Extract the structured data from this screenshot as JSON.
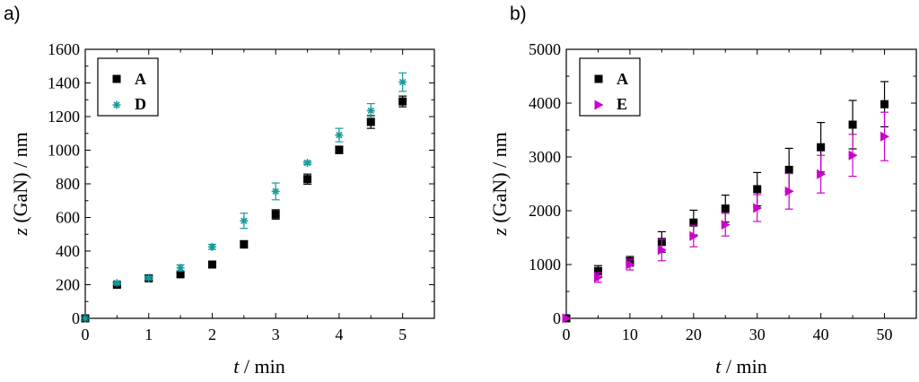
{
  "chart_data": [
    {
      "panel_label": "a)",
      "type": "scatter",
      "xlabel_var": "t",
      "xlabel_unit": " / min",
      "ylabel_var": "z",
      "ylabel_unit": " (GaN) / nm",
      "xlim": [
        0,
        5.5
      ],
      "ylim": [
        0,
        1600
      ],
      "xticks": [
        0,
        1,
        2,
        3,
        4,
        5
      ],
      "yticks": [
        0,
        200,
        400,
        600,
        800,
        1000,
        1200,
        1400,
        1600
      ],
      "legend_position": "top-left",
      "series": [
        {
          "name": "A",
          "marker": "square",
          "color": "#000000",
          "x": [
            0,
            0.5,
            1,
            1.5,
            2,
            2.5,
            3,
            3.5,
            4,
            4.5,
            5
          ],
          "y": [
            0,
            200,
            238,
            262,
            320,
            440,
            618,
            828,
            1002,
            1168,
            1290
          ],
          "err": [
            0,
            10,
            10,
            12,
            10,
            22,
            28,
            30,
            22,
            38,
            32
          ]
        },
        {
          "name": "D",
          "marker": "asterisk",
          "color": "#1a9a9a",
          "x": [
            0,
            0.5,
            1,
            1.5,
            2,
            2.5,
            3,
            3.5,
            4,
            4.5,
            5
          ],
          "y": [
            0,
            210,
            240,
            300,
            425,
            580,
            755,
            925,
            1090,
            1235,
            1405
          ],
          "err": [
            0,
            8,
            8,
            18,
            15,
            45,
            50,
            10,
            40,
            42,
            55
          ]
        }
      ]
    },
    {
      "panel_label": "b)",
      "type": "scatter",
      "xlabel_var": "t",
      "xlabel_unit": " / min",
      "ylabel_var": "z",
      "ylabel_unit": " (GaN) / nm",
      "xlim": [
        0,
        55
      ],
      "ylim": [
        0,
        5000
      ],
      "xticks": [
        0,
        10,
        20,
        30,
        40,
        50
      ],
      "yticks": [
        0,
        1000,
        2000,
        3000,
        4000,
        5000
      ],
      "legend_position": "top-left",
      "series": [
        {
          "name": "A",
          "marker": "square",
          "color": "#000000",
          "x": [
            0,
            5,
            10,
            15,
            20,
            25,
            30,
            35,
            40,
            45,
            50
          ],
          "y": [
            0,
            880,
            1060,
            1420,
            1780,
            2040,
            2400,
            2760,
            3180,
            3600,
            3980
          ],
          "err": [
            0,
            100,
            90,
            190,
            230,
            250,
            310,
            400,
            460,
            450,
            420
          ]
        },
        {
          "name": "E",
          "marker": "triangle-right",
          "color": "#cc00cc",
          "x": [
            0,
            5,
            10,
            15,
            20,
            25,
            30,
            35,
            40,
            45,
            50
          ],
          "y": [
            0,
            760,
            1000,
            1270,
            1530,
            1740,
            2050,
            2360,
            2680,
            3030,
            3380
          ],
          "err": [
            0,
            90,
            100,
            200,
            200,
            210,
            250,
            330,
            350,
            390,
            450
          ]
        }
      ]
    }
  ]
}
